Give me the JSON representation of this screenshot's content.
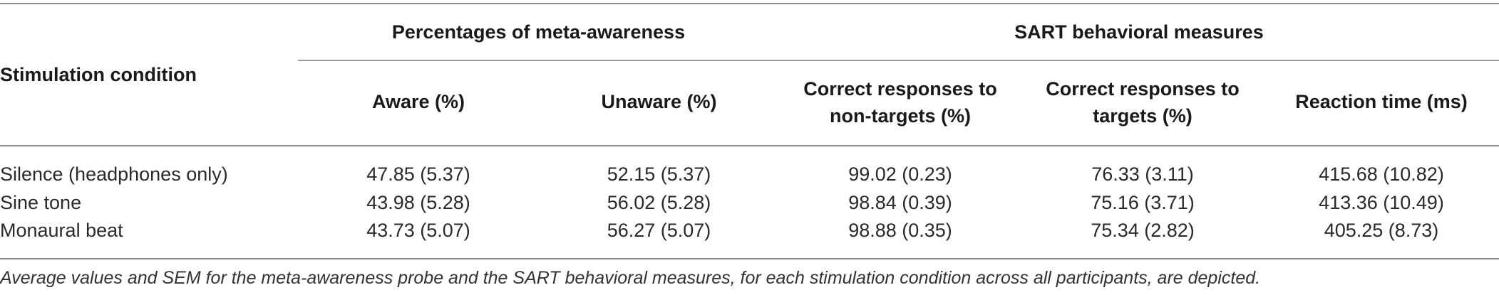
{
  "table": {
    "row_header_label": "Stimulation condition",
    "groups": [
      {
        "label": "Percentages of meta-awareness"
      },
      {
        "label": "SART behavioral measures"
      }
    ],
    "columns": [
      {
        "label": "Aware (%)"
      },
      {
        "label": "Unaware (%)"
      },
      {
        "label_line1": "Correct responses to",
        "label_line2": "non-targets (%)"
      },
      {
        "label_line1": "Correct responses to",
        "label_line2": "targets (%)"
      },
      {
        "label": "Reaction time (ms)"
      }
    ],
    "rows": [
      {
        "condition": "Silence (headphones only)",
        "values": [
          "47.85 (5.37)",
          "52.15 (5.37)",
          "99.02 (0.23)",
          "76.33 (3.11)",
          "415.68 (10.82)"
        ]
      },
      {
        "condition": "Sine tone",
        "values": [
          "43.98 (5.28)",
          "56.02 (5.28)",
          "98.84 (0.39)",
          "75.16 (3.71)",
          "413.36 (10.49)"
        ]
      },
      {
        "condition": "Monaural beat",
        "values": [
          "43.73 (5.07)",
          "56.27 (5.07)",
          "98.88 (0.35)",
          "75.34 (2.82)",
          "405.25 (8.73)"
        ]
      }
    ]
  },
  "caption": "Average values and SEM for the meta-awareness probe and the SART behavioral measures, for each stimulation condition across all participants, are depicted."
}
